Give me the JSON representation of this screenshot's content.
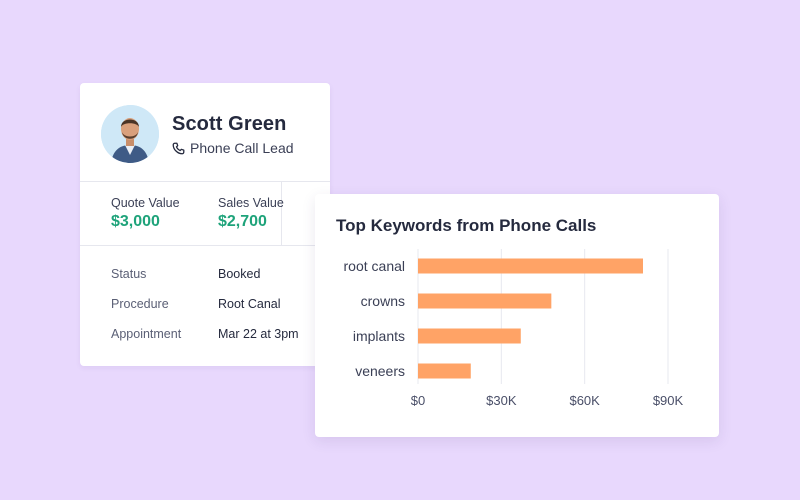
{
  "colors": {
    "background": "#e8d8fd",
    "card": "#ffffff",
    "accent_green": "#1ea37a",
    "bar": "#ffa366",
    "text_dark": "#252a3e"
  },
  "lead": {
    "avatar_icon": "person-avatar",
    "name": "Scott Green",
    "subtitle_icon": "phone-icon",
    "subtitle": "Phone Call Lead",
    "quote_label": "Quote Value",
    "quote_value": "$3,000",
    "sales_label": "Sales Value",
    "sales_value": "$2,700",
    "details": [
      {
        "label": "Status",
        "value": "Booked"
      },
      {
        "label": "Procedure",
        "value": "Root Canal"
      },
      {
        "label": "Appointment",
        "value": "Mar 22 at 3pm"
      }
    ]
  },
  "chart_data": {
    "type": "bar",
    "orientation": "horizontal",
    "title": "Top Keywords from Phone Calls",
    "categories": [
      "root canal",
      "crowns",
      "implants",
      "veneers"
    ],
    "values": [
      81000,
      48000,
      37000,
      19000
    ],
    "xlim": [
      0,
      90000
    ],
    "xticks": [
      0,
      30000,
      60000,
      90000
    ],
    "xtick_labels": [
      "$0",
      "$30K",
      "$60K",
      "$90K"
    ],
    "xlabel": "",
    "ylabel": "",
    "grid": true,
    "legend": "none"
  }
}
